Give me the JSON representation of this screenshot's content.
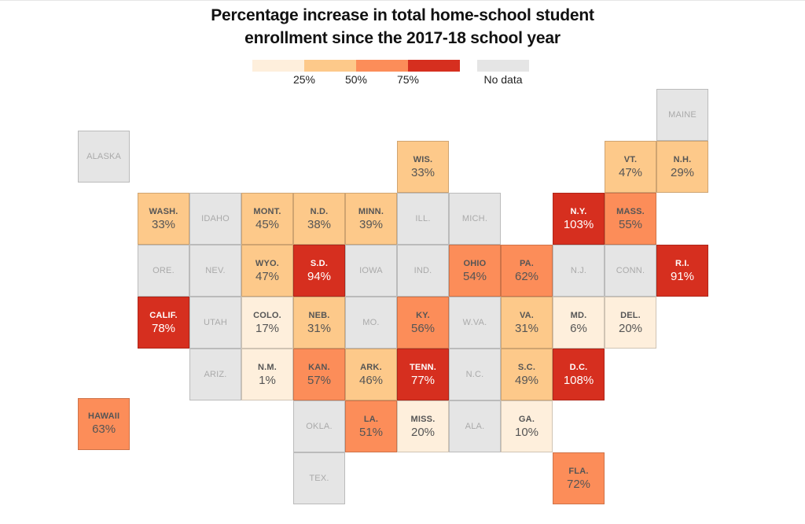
{
  "chart_data": {
    "type": "tile-map",
    "title": "Percentage increase in total home-school student enrollment since the 2017-18 school year",
    "title_lines": [
      "Percentage increase in total home-school student",
      "enrollment since the 2017-18 school year"
    ],
    "legend": {
      "bins": [
        {
          "min": 0,
          "max": 25,
          "color": "#feefdc"
        },
        {
          "min": 25,
          "max": 50,
          "color": "#fdc98a"
        },
        {
          "min": 50,
          "max": 75,
          "color": "#fc8d59"
        },
        {
          "min": 75,
          "max": null,
          "color": "#d62f1f"
        }
      ],
      "tick_labels": [
        "25%",
        "50%",
        "75%"
      ],
      "nodata_label": "No data",
      "nodata_color": "#e5e5e5"
    },
    "states": [
      {
        "abbr": "ALASKA",
        "value": null,
        "row": -1.2,
        "col": -1.15
      },
      {
        "abbr": "MAINE",
        "value": null,
        "row": -2,
        "col": 10
      },
      {
        "abbr": "WIS.",
        "value": 33,
        "row": -1,
        "col": 5
      },
      {
        "abbr": "VT.",
        "value": 47,
        "row": -1,
        "col": 9
      },
      {
        "abbr": "N.H.",
        "value": 29,
        "row": -1,
        "col": 10
      },
      {
        "abbr": "WASH.",
        "value": 33,
        "row": 0,
        "col": 0
      },
      {
        "abbr": "IDAHO",
        "value": null,
        "row": 0,
        "col": 1
      },
      {
        "abbr": "MONT.",
        "value": 45,
        "row": 0,
        "col": 2
      },
      {
        "abbr": "N.D.",
        "value": 38,
        "row": 0,
        "col": 3
      },
      {
        "abbr": "MINN.",
        "value": 39,
        "row": 0,
        "col": 4
      },
      {
        "abbr": "ILL.",
        "value": null,
        "row": 0,
        "col": 5
      },
      {
        "abbr": "MICH.",
        "value": null,
        "row": 0,
        "col": 6
      },
      {
        "abbr": "N.Y.",
        "value": 103,
        "row": 0,
        "col": 8
      },
      {
        "abbr": "MASS.",
        "value": 55,
        "row": 0,
        "col": 9
      },
      {
        "abbr": "ORE.",
        "value": null,
        "row": 1,
        "col": 0
      },
      {
        "abbr": "NEV.",
        "value": null,
        "row": 1,
        "col": 1
      },
      {
        "abbr": "WYO.",
        "value": 47,
        "row": 1,
        "col": 2
      },
      {
        "abbr": "S.D.",
        "value": 94,
        "row": 1,
        "col": 3
      },
      {
        "abbr": "IOWA",
        "value": null,
        "row": 1,
        "col": 4
      },
      {
        "abbr": "IND.",
        "value": null,
        "row": 1,
        "col": 5
      },
      {
        "abbr": "OHIO",
        "value": 54,
        "row": 1,
        "col": 6
      },
      {
        "abbr": "PA.",
        "value": 62,
        "row": 1,
        "col": 7
      },
      {
        "abbr": "N.J.",
        "value": null,
        "row": 1,
        "col": 8
      },
      {
        "abbr": "CONN.",
        "value": null,
        "row": 1,
        "col": 9
      },
      {
        "abbr": "R.I.",
        "value": 91,
        "row": 1,
        "col": 10
      },
      {
        "abbr": "CALIF.",
        "value": 78,
        "row": 2,
        "col": 0
      },
      {
        "abbr": "UTAH",
        "value": null,
        "row": 2,
        "col": 1
      },
      {
        "abbr": "COLO.",
        "value": 17,
        "row": 2,
        "col": 2
      },
      {
        "abbr": "NEB.",
        "value": 31,
        "row": 2,
        "col": 3
      },
      {
        "abbr": "MO.",
        "value": null,
        "row": 2,
        "col": 4
      },
      {
        "abbr": "KY.",
        "value": 56,
        "row": 2,
        "col": 5
      },
      {
        "abbr": "W.VA.",
        "value": null,
        "row": 2,
        "col": 6
      },
      {
        "abbr": "VA.",
        "value": 31,
        "row": 2,
        "col": 7
      },
      {
        "abbr": "MD.",
        "value": 6,
        "row": 2,
        "col": 8
      },
      {
        "abbr": "DEL.",
        "value": 20,
        "row": 2,
        "col": 9
      },
      {
        "abbr": "ARIZ.",
        "value": null,
        "row": 3,
        "col": 1
      },
      {
        "abbr": "N.M.",
        "value": 1,
        "row": 3,
        "col": 2
      },
      {
        "abbr": "KAN.",
        "value": 57,
        "row": 3,
        "col": 3
      },
      {
        "abbr": "ARK.",
        "value": 46,
        "row": 3,
        "col": 4
      },
      {
        "abbr": "TENN.",
        "value": 77,
        "row": 3,
        "col": 5
      },
      {
        "abbr": "N.C.",
        "value": null,
        "row": 3,
        "col": 6
      },
      {
        "abbr": "S.C.",
        "value": 49,
        "row": 3,
        "col": 7
      },
      {
        "abbr": "D.C.",
        "value": 108,
        "row": 3,
        "col": 8
      },
      {
        "abbr": "HAWAII",
        "value": 63,
        "row": 3.95,
        "col": -1.15
      },
      {
        "abbr": "OKLA.",
        "value": null,
        "row": 4,
        "col": 3
      },
      {
        "abbr": "LA.",
        "value": 51,
        "row": 4,
        "col": 4
      },
      {
        "abbr": "MISS.",
        "value": 20,
        "row": 4,
        "col": 5
      },
      {
        "abbr": "ALA.",
        "value": null,
        "row": 4,
        "col": 6
      },
      {
        "abbr": "GA.",
        "value": 10,
        "row": 4,
        "col": 7
      },
      {
        "abbr": "TEX.",
        "value": null,
        "row": 5,
        "col": 3
      },
      {
        "abbr": "FLA.",
        "value": 72,
        "row": 5,
        "col": 8
      }
    ]
  }
}
